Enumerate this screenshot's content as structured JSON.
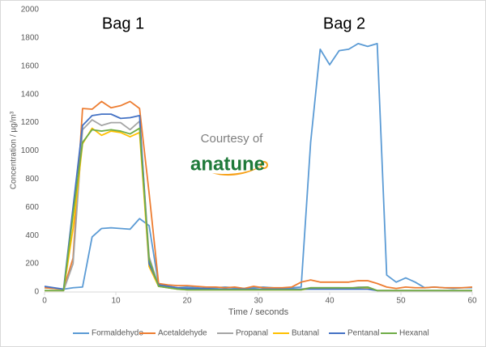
{
  "chart_data": {
    "type": "line",
    "x_label": "Time / seconds",
    "y_label": "Concentration / µg/m³",
    "annotations": [
      "Bag 1",
      "Bag 2",
      "Courtesy of",
      "anatune"
    ],
    "x": [
      0,
      1.33,
      2.67,
      4,
      5.33,
      6.67,
      8,
      9.33,
      10.67,
      12,
      13.33,
      14.67,
      16,
      17.33,
      18.67,
      20,
      21.33,
      22.67,
      24,
      25.33,
      26.67,
      28,
      29.33,
      30.67,
      32,
      33.33,
      34.67,
      36,
      37.33,
      38.67,
      40,
      41.33,
      42.67,
      44,
      45.33,
      46.67,
      48,
      49.33,
      50.67,
      52,
      53.33,
      54.67,
      56,
      57.33,
      58.67,
      60
    ],
    "series": [
      {
        "name": "Formaldehyde",
        "color": "#5b9bd5",
        "values": [
          30,
          25,
          20,
          30,
          35,
          390,
          450,
          455,
          450,
          445,
          520,
          470,
          50,
          40,
          30,
          35,
          30,
          25,
          30,
          35,
          30,
          25,
          30,
          35,
          30,
          25,
          30,
          35,
          1060,
          1720,
          1610,
          1710,
          1720,
          1760,
          1740,
          1760,
          120,
          70,
          100,
          70,
          30,
          35,
          30,
          25,
          30,
          30
        ]
      },
      {
        "name": "Acetaldehyde",
        "color": "#ed7d31",
        "values": [
          30,
          25,
          20,
          240,
          1300,
          1295,
          1350,
          1305,
          1320,
          1350,
          1300,
          700,
          60,
          50,
          45,
          45,
          40,
          35,
          35,
          30,
          35,
          25,
          40,
          30,
          30,
          30,
          35,
          70,
          85,
          70,
          70,
          70,
          70,
          80,
          80,
          60,
          35,
          25,
          35,
          30,
          30,
          35,
          30,
          30,
          30,
          35
        ]
      },
      {
        "name": "Propanal",
        "color": "#a5a5a5",
        "values": [
          10,
          10,
          10,
          200,
          1150,
          1220,
          1180,
          1200,
          1200,
          1150,
          1210,
          250,
          40,
          30,
          25,
          20,
          20,
          20,
          20,
          20,
          20,
          20,
          20,
          20,
          20,
          20,
          20,
          20,
          30,
          30,
          30,
          30,
          25,
          35,
          35,
          10,
          10,
          10,
          10,
          10,
          10,
          10,
          10,
          10,
          10,
          10
        ]
      },
      {
        "name": "Butanal",
        "color": "#ffc000",
        "values": [
          10,
          10,
          10,
          450,
          1050,
          1160,
          1110,
          1140,
          1130,
          1100,
          1130,
          180,
          40,
          30,
          20,
          15,
          15,
          15,
          15,
          15,
          15,
          15,
          15,
          15,
          15,
          15,
          15,
          15,
          25,
          25,
          25,
          25,
          25,
          30,
          30,
          10,
          10,
          10,
          10,
          10,
          10,
          10,
          10,
          10,
          10,
          10
        ]
      },
      {
        "name": "Pentanal",
        "color": "#4472c4",
        "values": [
          40,
          30,
          20,
          600,
          1180,
          1250,
          1260,
          1260,
          1230,
          1235,
          1250,
          200,
          50,
          40,
          30,
          25,
          25,
          25,
          20,
          20,
          20,
          20,
          20,
          20,
          20,
          20,
          20,
          20,
          20,
          20,
          20,
          20,
          20,
          20,
          20,
          10,
          10,
          10,
          10,
          10,
          10,
          10,
          10,
          10,
          10,
          10
        ]
      },
      {
        "name": "Hexanal",
        "color": "#70ad47",
        "values": [
          10,
          10,
          10,
          550,
          1060,
          1150,
          1140,
          1150,
          1140,
          1120,
          1160,
          230,
          40,
          30,
          20,
          15,
          15,
          15,
          15,
          15,
          15,
          15,
          15,
          15,
          15,
          15,
          15,
          15,
          30,
          30,
          30,
          30,
          30,
          30,
          35,
          10,
          10,
          10,
          10,
          10,
          10,
          10,
          10,
          10,
          10,
          10
        ]
      }
    ],
    "xlim": [
      0,
      60
    ],
    "xticks": [
      0,
      10,
      20,
      30,
      40,
      50,
      60
    ],
    "ylim": [
      0,
      2000
    ],
    "yticks": [
      0,
      200,
      400,
      600,
      800,
      1000,
      1200,
      1400,
      1600,
      1800,
      2000
    ],
    "grid": false,
    "legend": "bottom"
  }
}
